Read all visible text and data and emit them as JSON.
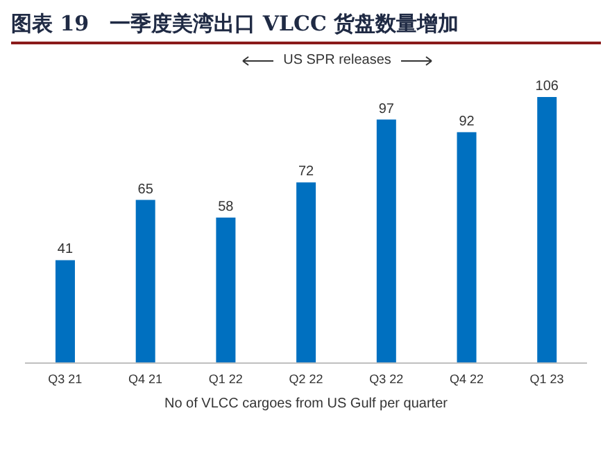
{
  "chart_data": {
    "type": "bar",
    "title": "图表 19　一季度美湾出口 VLCC 货盘数量增加",
    "xlabel": "No of VLCC cargoes from US Gulf per quarter",
    "categories": [
      "Q3 21",
      "Q4 21",
      "Q1 22",
      "Q2 22",
      "Q3 22",
      "Q4 22",
      "Q1 23"
    ],
    "values": [
      41,
      65,
      58,
      72,
      97,
      92,
      106
    ],
    "color": "#0070c0",
    "data_labels": true,
    "annotations": [
      "US SPR releases"
    ]
  }
}
